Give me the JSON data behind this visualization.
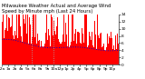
{
  "title_line1": "Milwaukee Weather Actual and Average Wind Speed by Minute mph (Last 24 Hours)",
  "title_line2": "Last 24 Hours",
  "background_color": "#ffffff",
  "plot_background": "#ffffff",
  "bar_color": "#ff0000",
  "line_color": "#0000cc",
  "ylim": [
    0,
    14
  ],
  "n_points": 1440,
  "avg_wind_base": 5.2,
  "avg_wind_low": 3.5,
  "actual_wind_max": 14,
  "vline_positions": [
    0.26,
    0.44
  ],
  "vline_color": "#aaaaaa",
  "title_fontsize": 3.8,
  "tick_fontsize": 3.2,
  "ytick_values": [
    0,
    2,
    4,
    6,
    8,
    10,
    12,
    14
  ]
}
